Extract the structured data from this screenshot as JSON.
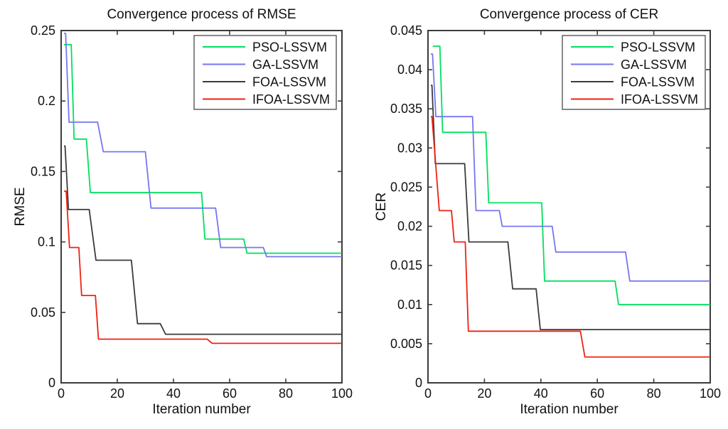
{
  "figure": {
    "background": "#ffffff"
  },
  "chart_data": [
    {
      "type": "line",
      "title": "Convergence process of RMSE",
      "xlabel": "Iteration number",
      "ylabel": "RMSE",
      "xlim": [
        0,
        100
      ],
      "ylim": [
        0,
        0.25
      ],
      "xticks": [
        0,
        20,
        40,
        60,
        80,
        100
      ],
      "xtick_labels": [
        "0",
        "20",
        "40",
        "60",
        "80",
        "100"
      ],
      "yticks": [
        0,
        0.05,
        0.1,
        0.15,
        0.2,
        0.25
      ],
      "ytick_labels": [
        "0",
        "0.05",
        "0.1",
        "0.15",
        "0.2",
        "0.25"
      ],
      "grid": false,
      "legend": {
        "position": "top-right"
      },
      "axis_color": "#3b3b3b",
      "series": [
        {
          "name": "PSO-LSSVM",
          "color": "#00e05e",
          "points": [
            [
              1,
              0.24
            ],
            [
              3.6,
              0.24
            ],
            [
              4.6,
              0.173
            ],
            [
              9,
              0.173
            ],
            [
              10.4,
              0.135
            ],
            [
              50,
              0.135
            ],
            [
              51.2,
              0.102
            ],
            [
              65,
              0.102
            ],
            [
              66.2,
              0.092
            ],
            [
              100,
              0.092
            ]
          ]
        },
        {
          "name": "GA-LSSVM",
          "color": "#7576f0",
          "points": [
            [
              1,
              0.248
            ],
            [
              1.6,
              0.248
            ],
            [
              2.8,
              0.185
            ],
            [
              13,
              0.185
            ],
            [
              15,
              0.164
            ],
            [
              30,
              0.164
            ],
            [
              32,
              0.124
            ],
            [
              55,
              0.124
            ],
            [
              56.8,
              0.096
            ],
            [
              72,
              0.096
            ],
            [
              73.2,
              0.0895
            ],
            [
              100,
              0.0895
            ]
          ]
        },
        {
          "name": "FOA-LSSVM",
          "color": "#3b3b3b",
          "points": [
            [
              1,
              0.168
            ],
            [
              1.4,
              0.168
            ],
            [
              2.6,
              0.123
            ],
            [
              10,
              0.123
            ],
            [
              12.4,
              0.087
            ],
            [
              25,
              0.087
            ],
            [
              27.2,
              0.042
            ],
            [
              35.3,
              0.042
            ],
            [
              37.2,
              0.0345
            ],
            [
              100,
              0.0345
            ]
          ]
        },
        {
          "name": "IFOA-LSSVM",
          "color": "#ee2211",
          "points": [
            [
              1,
              0.136
            ],
            [
              1.8,
              0.136
            ],
            [
              3,
              0.096
            ],
            [
              6.3,
              0.096
            ],
            [
              7.3,
              0.062
            ],
            [
              12.2,
              0.062
            ],
            [
              13.3,
              0.031
            ],
            [
              52,
              0.031
            ],
            [
              53.8,
              0.028
            ],
            [
              100,
              0.028
            ]
          ]
        }
      ]
    },
    {
      "type": "line",
      "title": "Convergence process of CER",
      "xlabel": "Iteration number",
      "ylabel": "CER",
      "xlim": [
        0,
        100
      ],
      "ylim": [
        0,
        0.045
      ],
      "xticks": [
        0,
        20,
        40,
        60,
        80,
        100
      ],
      "xtick_labels": [
        "0",
        "20",
        "40",
        "60",
        "80",
        "100"
      ],
      "yticks": [
        0,
        0.005,
        0.01,
        0.015,
        0.02,
        0.025,
        0.03,
        0.035,
        0.04,
        0.045
      ],
      "ytick_labels": [
        "0",
        "0.005",
        "0.01",
        "0.015",
        "0.02",
        "0.025",
        "0.03",
        "0.035",
        "0.04",
        "0.045"
      ],
      "grid": false,
      "legend": {
        "position": "top-right"
      },
      "axis_color": "#3b3b3b",
      "series": [
        {
          "name": "PSO-LSSVM",
          "color": "#00e05e",
          "points": [
            [
              1.7,
              0.043
            ],
            [
              4.2,
              0.043
            ],
            [
              5.2,
              0.032
            ],
            [
              20.5,
              0.032
            ],
            [
              21.5,
              0.023
            ],
            [
              40.3,
              0.023
            ],
            [
              41.3,
              0.013
            ],
            [
              66.3,
              0.013
            ],
            [
              67.5,
              0.01
            ],
            [
              100,
              0.01
            ]
          ]
        },
        {
          "name": "GA-LSSVM",
          "color": "#7576f0",
          "points": [
            [
              1,
              0.042
            ],
            [
              1.6,
              0.042
            ],
            [
              2.8,
              0.034
            ],
            [
              15.8,
              0.034
            ],
            [
              17,
              0.022
            ],
            [
              25.3,
              0.022
            ],
            [
              26.3,
              0.02
            ],
            [
              44,
              0.02
            ],
            [
              45.3,
              0.0167
            ],
            [
              70,
              0.0167
            ],
            [
              71.5,
              0.013
            ],
            [
              100,
              0.013
            ]
          ]
        },
        {
          "name": "FOA-LSSVM",
          "color": "#3b3b3b",
          "points": [
            [
              1,
              0.038
            ],
            [
              1.4,
              0.038
            ],
            [
              2.6,
              0.028
            ],
            [
              13,
              0.028
            ],
            [
              14.5,
              0.018
            ],
            [
              28.3,
              0.018
            ],
            [
              30,
              0.012
            ],
            [
              38.3,
              0.012
            ],
            [
              39.8,
              0.0068
            ],
            [
              100,
              0.0068
            ]
          ]
        },
        {
          "name": "IFOA-LSSVM",
          "color": "#ee2211",
          "points": [
            [
              1,
              0.034
            ],
            [
              1.4,
              0.034
            ],
            [
              4,
              0.022
            ],
            [
              8.3,
              0.022
            ],
            [
              9.3,
              0.018
            ],
            [
              13.2,
              0.018
            ],
            [
              14.3,
              0.0066
            ],
            [
              54,
              0.0066
            ],
            [
              55.6,
              0.0033
            ],
            [
              100,
              0.0033
            ]
          ]
        }
      ]
    }
  ]
}
